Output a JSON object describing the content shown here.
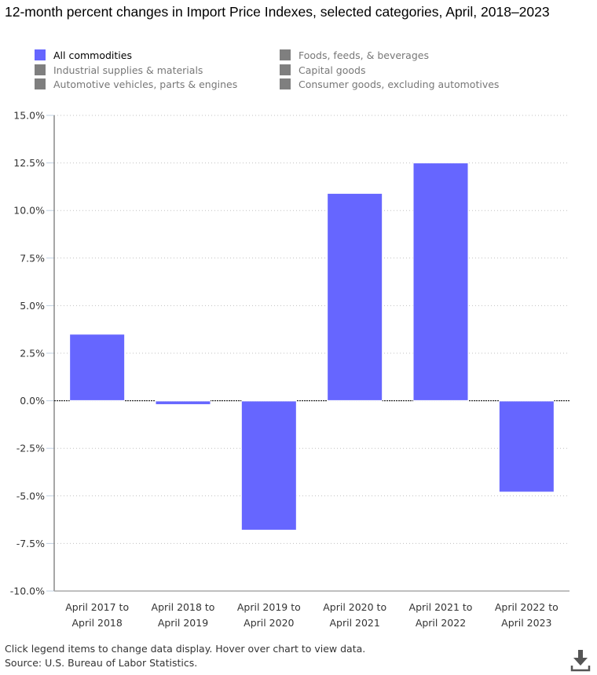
{
  "title": "12-month percent changes in Import Price Indexes, selected categories, April, 2018–2023",
  "legend": {
    "items": [
      {
        "label": "All commodities",
        "color": "#6666ff",
        "active": true
      },
      {
        "label": "Industrial supplies & materials",
        "color": "#7f7f7f",
        "active": false
      },
      {
        "label": "Automotive vehicles, parts & engines",
        "color": "#7f7f7f",
        "active": false
      },
      {
        "label": "Foods, feeds, & beverages",
        "color": "#7f7f7f",
        "active": false
      },
      {
        "label": "Capital goods",
        "color": "#7f7f7f",
        "active": false
      },
      {
        "label": "Consumer goods, excluding automotives",
        "color": "#7f7f7f",
        "active": false
      }
    ]
  },
  "chart_data": {
    "type": "bar",
    "title": "12-month percent changes in Import Price Indexes, selected categories, April, 2018–2023",
    "xlabel": "",
    "ylabel": "",
    "categories": [
      [
        "April 2017 to",
        "April 2018"
      ],
      [
        "April 2018 to",
        "April 2019"
      ],
      [
        "April 2019 to",
        "April 2020"
      ],
      [
        "April 2020 to",
        "April 2021"
      ],
      [
        "April 2021 to",
        "April 2022"
      ],
      [
        "April 2022 to",
        "April 2023"
      ]
    ],
    "series": [
      {
        "name": "All commodities",
        "color": "#6666ff",
        "values": [
          3.5,
          -0.2,
          -6.8,
          10.9,
          12.5,
          -4.8
        ]
      }
    ],
    "ylim": [
      -10,
      15
    ],
    "yticks": [
      15,
      12.5,
      10,
      7.5,
      5,
      2.5,
      0,
      -2.5,
      -5,
      -7.5,
      -10
    ],
    "ytick_labels": [
      "15.0%",
      "12.5%",
      "10.0%",
      "7.5%",
      "5.0%",
      "2.5%",
      "0.0%",
      "-2.5%",
      "-5.0%",
      "-7.5%",
      "-10.0%"
    ],
    "grid": true,
    "legend_position": "top"
  },
  "footer": {
    "note": "Click legend items to change data display. Hover over chart to view data.",
    "source": "Source: U.S. Bureau of Labor Statistics."
  },
  "icons": {
    "download": "download-icon"
  }
}
